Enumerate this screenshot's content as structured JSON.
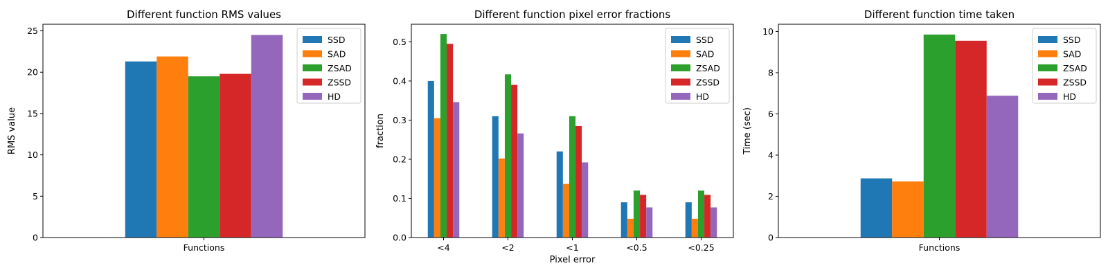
{
  "colors": {
    "SSD": "#1f77b4",
    "SAD": "#ff7f0e",
    "ZSAD": "#2ca02c",
    "ZSSD": "#d62728",
    "HD": "#9467bd"
  },
  "chart_data": [
    {
      "type": "bar",
      "title": "Different function RMS values",
      "xlabel": "",
      "ylabel": "RMS value",
      "categories": [
        "Functions"
      ],
      "ylim": [
        0,
        25.8
      ],
      "yticks": [
        0,
        5,
        10,
        15,
        20,
        25
      ],
      "series": [
        {
          "name": "SSD",
          "values": [
            21.3
          ]
        },
        {
          "name": "SAD",
          "values": [
            21.9
          ]
        },
        {
          "name": "ZSAD",
          "values": [
            19.5
          ]
        },
        {
          "name": "ZSSD",
          "values": [
            19.8
          ]
        },
        {
          "name": "HD",
          "values": [
            24.5
          ]
        }
      ],
      "legend": "top-right",
      "grid": false
    },
    {
      "type": "bar",
      "title": "Different function pixel error fractions",
      "xlabel": "Pixel error",
      "ylabel": "fraction",
      "categories": [
        "<4",
        "<2",
        "<1",
        "<0.5",
        "<0.25"
      ],
      "ylim": [
        0,
        0.545
      ],
      "yticks": [
        0.0,
        0.1,
        0.2,
        0.3,
        0.4,
        0.5
      ],
      "series": [
        {
          "name": "SSD",
          "values": [
            0.4,
            0.31,
            0.22,
            0.09,
            0.09
          ]
        },
        {
          "name": "SAD",
          "values": [
            0.305,
            0.202,
            0.137,
            0.048,
            0.048
          ]
        },
        {
          "name": "ZSAD",
          "values": [
            0.52,
            0.417,
            0.31,
            0.12,
            0.12
          ]
        },
        {
          "name": "ZSSD",
          "values": [
            0.495,
            0.39,
            0.285,
            0.109,
            0.109
          ]
        },
        {
          "name": "HD",
          "values": [
            0.346,
            0.266,
            0.192,
            0.077,
            0.077
          ]
        }
      ],
      "legend": "top-right",
      "grid": false
    },
    {
      "type": "bar",
      "title": "Different function time taken",
      "xlabel": "",
      "ylabel": "Time (sec)",
      "categories": [
        "Functions"
      ],
      "ylim": [
        0,
        10.35
      ],
      "yticks": [
        0,
        2,
        4,
        6,
        8,
        10
      ],
      "series": [
        {
          "name": "SSD",
          "values": [
            2.87
          ]
        },
        {
          "name": "SAD",
          "values": [
            2.72
          ]
        },
        {
          "name": "ZSAD",
          "values": [
            9.85
          ]
        },
        {
          "name": "ZSSD",
          "values": [
            9.55
          ]
        },
        {
          "name": "HD",
          "values": [
            6.88
          ]
        }
      ],
      "legend": "top-right",
      "grid": false
    }
  ]
}
